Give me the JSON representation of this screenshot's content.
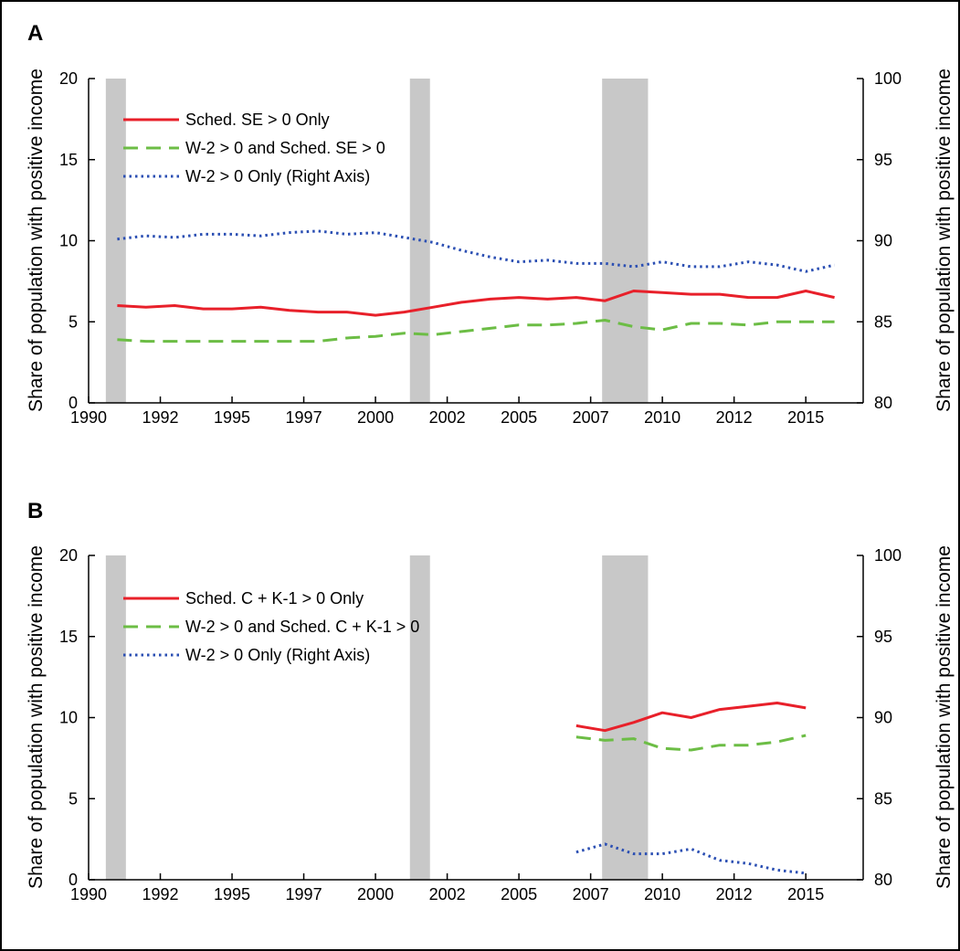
{
  "figure": {
    "panels": [
      {
        "letter": "A",
        "y_label_left": "Share of population with positive income",
        "y_label_right": "Share of population with positive income",
        "legend": [
          "Sched. SE > 0 Only",
          "W-2 > 0 and Sched. SE > 0",
          "W-2 > 0 Only (Right Axis)"
        ]
      },
      {
        "letter": "B",
        "y_label_left": "Share of population with positive income",
        "y_label_right": "Share of population with positive income",
        "legend": [
          "Sched. C + K-1 > 0 Only",
          "W-2 > 0 and Sched. C + K-1 > 0",
          "W-2 > 0 Only (Right Axis)"
        ]
      }
    ]
  },
  "chart_data": [
    {
      "type": "line",
      "title": "",
      "panel_label": "A",
      "xlabel": "",
      "ylabel": "Share of population with positive income",
      "ylabel_right": "Share of population with positive income",
      "xlim": [
        1990,
        2017
      ],
      "ylim": [
        0,
        20
      ],
      "ylim_right": [
        80,
        100
      ],
      "x_ticks": [
        1990,
        1992.5,
        1995,
        1997.5,
        2000,
        2002.5,
        2005,
        2007.5,
        2010,
        2012.5,
        2015
      ],
      "x_tick_labels": [
        "1990",
        "1992",
        "1995",
        "1997",
        "2000",
        "2002",
        "2005",
        "2007",
        "2010",
        "2012",
        "2015"
      ],
      "y_ticks": [
        0,
        5,
        10,
        15,
        20
      ],
      "y_ticks_right": [
        80,
        85,
        90,
        95,
        100
      ],
      "legend_position": "top-left",
      "recession_bands": [
        [
          1990.6,
          1991.3
        ],
        [
          2001.2,
          2001.9
        ],
        [
          2007.9,
          2009.5
        ]
      ],
      "series": [
        {
          "name": "Sched. SE > 0 Only",
          "color": "#e8202a",
          "style": "solid",
          "axis": "left",
          "x": [
            1991,
            1992,
            1993,
            1994,
            1995,
            1996,
            1997,
            1998,
            1999,
            2000,
            2001,
            2002,
            2003,
            2004,
            2005,
            2006,
            2007,
            2008,
            2009,
            2010,
            2011,
            2012,
            2013,
            2014,
            2015,
            2016
          ],
          "values": [
            6.0,
            5.9,
            6.0,
            5.8,
            5.8,
            5.9,
            5.7,
            5.6,
            5.6,
            5.4,
            5.6,
            5.9,
            6.2,
            6.4,
            6.5,
            6.4,
            6.5,
            6.3,
            6.9,
            6.8,
            6.7,
            6.7,
            6.5,
            6.5,
            6.9,
            6.5
          ]
        },
        {
          "name": "W-2 > 0 and Sched. SE > 0",
          "color": "#6cbd45",
          "style": "dashed",
          "axis": "left",
          "x": [
            1991,
            1992,
            1993,
            1994,
            1995,
            1996,
            1997,
            1998,
            1999,
            2000,
            2001,
            2002,
            2003,
            2004,
            2005,
            2006,
            2007,
            2008,
            2009,
            2010,
            2011,
            2012,
            2013,
            2014,
            2015,
            2016
          ],
          "values": [
            3.9,
            3.8,
            3.8,
            3.8,
            3.8,
            3.8,
            3.8,
            3.8,
            4.0,
            4.1,
            4.3,
            4.2,
            4.4,
            4.6,
            4.8,
            4.8,
            4.9,
            5.1,
            4.7,
            4.5,
            4.9,
            4.9,
            4.8,
            5.0,
            5.0,
            5.0
          ]
        },
        {
          "name": "W-2 > 0 Only (Right Axis)",
          "color": "#2b4fb3",
          "style": "dotted",
          "axis": "right",
          "x": [
            1991,
            1992,
            1993,
            1994,
            1995,
            1996,
            1997,
            1998,
            1999,
            2000,
            2001,
            2002,
            2003,
            2004,
            2005,
            2006,
            2007,
            2008,
            2009,
            2010,
            2011,
            2012,
            2013,
            2014,
            2015,
            2016
          ],
          "values": [
            90.1,
            90.3,
            90.2,
            90.4,
            90.4,
            90.3,
            90.5,
            90.6,
            90.4,
            90.5,
            90.2,
            89.9,
            89.4,
            89.0,
            88.7,
            88.8,
            88.6,
            88.6,
            88.4,
            88.7,
            88.4,
            88.4,
            88.7,
            88.5,
            88.1,
            88.5
          ]
        }
      ]
    },
    {
      "type": "line",
      "title": "",
      "panel_label": "B",
      "xlabel": "",
      "ylabel": "Share of population with positive income",
      "ylabel_right": "Share of population with positive income",
      "xlim": [
        1990,
        2017
      ],
      "ylim": [
        0,
        20
      ],
      "ylim_right": [
        80,
        100
      ],
      "x_ticks": [
        1990,
        1992.5,
        1995,
        1997.5,
        2000,
        2002.5,
        2005,
        2007.5,
        2010,
        2012.5,
        2015
      ],
      "x_tick_labels": [
        "1990",
        "1992",
        "1995",
        "1997",
        "2000",
        "2002",
        "2005",
        "2007",
        "2010",
        "2012",
        "2015"
      ],
      "y_ticks": [
        0,
        5,
        10,
        15,
        20
      ],
      "y_ticks_right": [
        80,
        85,
        90,
        95,
        100
      ],
      "legend_position": "top-left",
      "recession_bands": [
        [
          1990.6,
          1991.3
        ],
        [
          2001.2,
          2001.9
        ],
        [
          2007.9,
          2009.5
        ]
      ],
      "series": [
        {
          "name": "Sched. C + K-1 > 0 Only",
          "color": "#e8202a",
          "style": "solid",
          "axis": "left",
          "x": [
            2007,
            2008,
            2009,
            2010,
            2011,
            2012,
            2013,
            2014,
            2015
          ],
          "values": [
            9.5,
            9.2,
            9.7,
            10.3,
            10.0,
            10.5,
            10.7,
            10.9,
            10.6
          ]
        },
        {
          "name": "W-2 > 0 and Sched. C + K-1 > 0",
          "color": "#6cbd45",
          "style": "dashed",
          "axis": "left",
          "x": [
            2007,
            2008,
            2009,
            2010,
            2011,
            2012,
            2013,
            2014,
            2015
          ],
          "values": [
            8.8,
            8.6,
            8.7,
            8.1,
            8.0,
            8.3,
            8.3,
            8.5,
            8.9
          ]
        },
        {
          "name": "W-2 > 0 Only (Right Axis)",
          "color": "#2b4fb3",
          "style": "dotted",
          "axis": "right",
          "x": [
            2007,
            2008,
            2009,
            2010,
            2011,
            2012,
            2013,
            2014,
            2015
          ],
          "values": [
            81.7,
            82.2,
            81.6,
            81.6,
            81.9,
            81.2,
            81.0,
            80.6,
            80.4
          ]
        }
      ]
    }
  ]
}
